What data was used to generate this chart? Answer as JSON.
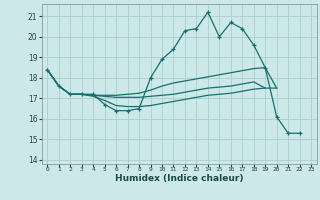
{
  "xlabel": "Humidex (Indice chaleur)",
  "bg_color": "#cce8e8",
  "grid_color": "#aad0d0",
  "line_color": "#1a6e6e",
  "xlim": [
    -0.5,
    23.5
  ],
  "ylim": [
    13.8,
    21.6
  ],
  "yticks": [
    14,
    15,
    16,
    17,
    18,
    19,
    20,
    21
  ],
  "xticks": [
    0,
    1,
    2,
    3,
    4,
    5,
    6,
    7,
    8,
    9,
    10,
    11,
    12,
    13,
    14,
    15,
    16,
    17,
    18,
    19,
    20,
    21,
    22,
    23
  ],
  "xtick_labels": [
    "0",
    "1",
    "2",
    "3",
    "4",
    "5",
    "6",
    "7",
    "8",
    "9",
    "10",
    "11",
    "12",
    "13",
    "14",
    "15",
    "16",
    "17",
    "18",
    "19",
    "20",
    "21",
    "22",
    "23"
  ],
  "series": [
    {
      "x": [
        0,
        1,
        2,
        3,
        4,
        5,
        6,
        7,
        8,
        9,
        10,
        11,
        12,
        13,
        14,
        15,
        16,
        17,
        18,
        19,
        20,
        21,
        22
      ],
      "y": [
        18.4,
        17.6,
        17.2,
        17.2,
        17.2,
        16.7,
        16.4,
        16.4,
        16.5,
        18.0,
        18.9,
        19.4,
        20.3,
        20.4,
        21.2,
        20.0,
        20.7,
        20.4,
        19.6,
        18.5,
        16.1,
        15.3,
        15.3
      ],
      "has_marker": true
    },
    {
      "x": [
        0,
        1,
        2,
        3,
        4,
        5,
        6,
        7,
        8,
        9,
        10,
        11,
        12,
        13,
        14,
        15,
        16,
        17,
        18,
        19,
        20
      ],
      "y": [
        18.4,
        17.6,
        17.2,
        17.2,
        17.15,
        17.15,
        17.15,
        17.2,
        17.25,
        17.4,
        17.6,
        17.75,
        17.85,
        17.95,
        18.05,
        18.15,
        18.25,
        18.35,
        18.45,
        18.5,
        17.5
      ],
      "has_marker": false
    },
    {
      "x": [
        0,
        1,
        2,
        3,
        4,
        5,
        6,
        7,
        8,
        9,
        10,
        11,
        12,
        13,
        14,
        15,
        16,
        17,
        18,
        19
      ],
      "y": [
        18.4,
        17.6,
        17.2,
        17.2,
        17.15,
        17.1,
        17.05,
        17.05,
        17.05,
        17.1,
        17.15,
        17.2,
        17.3,
        17.4,
        17.5,
        17.55,
        17.6,
        17.7,
        17.8,
        17.5
      ],
      "has_marker": false
    },
    {
      "x": [
        0,
        1,
        2,
        3,
        4,
        5,
        6,
        7,
        8,
        9,
        10,
        11,
        12,
        13,
        14,
        15,
        16,
        17,
        18,
        19,
        20
      ],
      "y": [
        18.4,
        17.6,
        17.2,
        17.2,
        17.1,
        16.9,
        16.65,
        16.6,
        16.6,
        16.65,
        16.75,
        16.85,
        16.95,
        17.05,
        17.15,
        17.2,
        17.25,
        17.35,
        17.45,
        17.5,
        17.5
      ],
      "has_marker": false
    }
  ]
}
